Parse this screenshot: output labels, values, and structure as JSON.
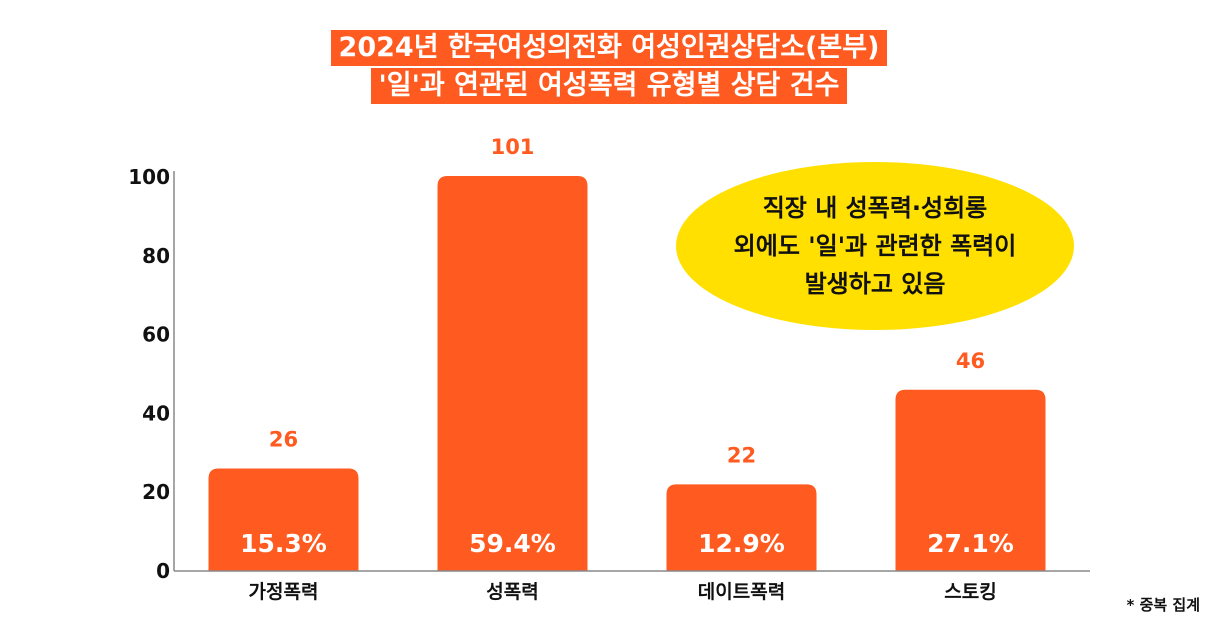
{
  "title_lines": [
    "2024년 한국여성의전화 여성인권상담소(본부)",
    "'일'과 연관된 여성폭력 유형별 상담 건수"
  ],
  "callout_lines": [
    "직장 내 성폭력·성희롱",
    "외에도 '일'과 관련한 폭력이",
    "발생하고 있음"
  ],
  "note": "* 중복 집계",
  "colors": {
    "bar": "#ff5a1f",
    "value_label": "#ff5a1f",
    "callout": "#ffe000",
    "title_bg": "#ff5a1f"
  },
  "chart_data": {
    "type": "bar",
    "categories": [
      "가정폭력",
      "성폭력",
      "데이트폭력",
      "스토킹"
    ],
    "values": [
      26,
      101,
      22,
      46
    ],
    "value_labels": [
      "26",
      "101",
      "22",
      "46"
    ],
    "percent_labels": [
      "15.3%",
      "59.4%",
      "12.9%",
      "27.1%"
    ],
    "yticks": [
      0,
      20,
      40,
      60,
      80,
      100
    ],
    "ylim": [
      0,
      100
    ],
    "xlabel": "",
    "ylabel": "",
    "grid": false,
    "legend": "none"
  }
}
